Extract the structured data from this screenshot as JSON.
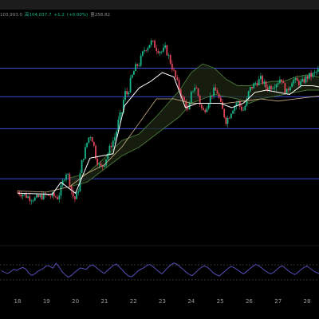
{
  "header": {
    "quote": [
      {
        "text": "103,993.0",
        "color": "#8a8a8a"
      },
      {
        "text": "高104,037.7",
        "color": "#19b58a"
      },
      {
        "text": "+1.2",
        "color": "#19b58a"
      },
      {
        "text": "(+0.00%)",
        "color": "#19b58a"
      },
      {
        "text": "量258.82",
        "color": "#8a8a8a"
      }
    ]
  },
  "colors": {
    "up": "#19b58a",
    "down": "#e0455a",
    "level_line": "#3a4bd9",
    "rsi_line": "#5a56c8",
    "cloud_line": "#4a7a3a",
    "tenkan": "#ffffff",
    "kijun": "#d2b48c"
  },
  "chart_data": [
    {
      "type": "candlestick",
      "title": "",
      "xlabel": "",
      "ylabel": "",
      "categories": [
        "18",
        "19",
        "20",
        "21",
        "22",
        "23",
        "24",
        "25",
        "26",
        "27",
        "28"
      ],
      "ylim": [
        0,
        100
      ],
      "grid": false,
      "horizontal_levels": [
        78.0,
        65.0,
        50.4,
        27.6
      ],
      "price_path": [
        [
          0,
          21.5
        ],
        [
          0.2,
          20.5
        ],
        [
          0.4,
          19.0
        ],
        [
          0.6,
          18.5
        ],
        [
          0.8,
          19.5
        ],
        [
          1.0,
          20.0
        ],
        [
          1.2,
          19.8
        ],
        [
          1.4,
          19.0
        ],
        [
          1.5,
          23.0
        ],
        [
          1.6,
          28.0
        ],
        [
          1.7,
          31.0
        ],
        [
          1.8,
          26.0
        ],
        [
          1.9,
          20.0
        ],
        [
          2.0,
          18.0
        ],
        [
          2.1,
          23.0
        ],
        [
          2.2,
          34.0
        ],
        [
          2.3,
          39.0
        ],
        [
          2.4,
          44.0
        ],
        [
          2.5,
          48.0
        ],
        [
          2.6,
          45.0
        ],
        [
          2.7,
          38.0
        ],
        [
          2.8,
          34.0
        ],
        [
          2.9,
          32.5
        ],
        [
          3.0,
          35.0
        ],
        [
          3.2,
          42.0
        ],
        [
          3.4,
          48.0
        ],
        [
          3.5,
          55.0
        ],
        [
          3.6,
          58.0
        ],
        [
          3.7,
          67.0
        ],
        [
          3.8,
          66.0
        ],
        [
          3.9,
          72.0
        ],
        [
          4.0,
          76.0
        ],
        [
          4.1,
          79.0
        ],
        [
          4.2,
          80.0
        ],
        [
          4.3,
          84.0
        ],
        [
          4.4,
          87.0
        ],
        [
          4.5,
          88.0
        ],
        [
          4.6,
          90.0
        ],
        [
          4.7,
          89.0
        ],
        [
          4.8,
          87.0
        ],
        [
          4.9,
          86.0
        ],
        [
          5.0,
          85.5
        ],
        [
          5.1,
          87.0
        ],
        [
          5.2,
          84.0
        ],
        [
          5.3,
          80.0
        ],
        [
          5.4,
          76.0
        ],
        [
          5.5,
          72.0
        ],
        [
          5.6,
          68.0
        ],
        [
          5.7,
          64.0
        ],
        [
          5.8,
          62.0
        ],
        [
          5.9,
          57.5
        ],
        [
          6.0,
          66.0
        ],
        [
          6.1,
          70.0
        ],
        [
          6.2,
          68.0
        ],
        [
          6.3,
          62.0
        ],
        [
          6.4,
          58.0
        ],
        [
          6.5,
          60.0
        ],
        [
          6.6,
          63.0
        ],
        [
          6.7,
          66.0
        ],
        [
          6.8,
          68.0
        ],
        [
          6.9,
          67.0
        ],
        [
          7.0,
          62.0
        ],
        [
          7.1,
          58.0
        ],
        [
          7.2,
          54.0
        ],
        [
          7.3,
          56.0
        ],
        [
          7.4,
          59.0
        ],
        [
          7.5,
          61.0
        ],
        [
          7.6,
          63.0
        ],
        [
          7.7,
          60.0
        ],
        [
          7.8,
          59.0
        ],
        [
          7.9,
          62.0
        ],
        [
          8.0,
          68.0
        ],
        [
          8.2,
          71.0
        ],
        [
          8.4,
          73.0
        ],
        [
          8.6,
          69.0
        ],
        [
          8.8,
          70.0
        ],
        [
          9.0,
          72.0
        ],
        [
          9.1,
          74.0
        ],
        [
          9.2,
          69.0
        ],
        [
          9.3,
          67.0
        ],
        [
          9.4,
          70.0
        ],
        [
          9.5,
          73.0
        ],
        [
          9.6,
          72.0
        ],
        [
          9.8,
          71.0
        ],
        [
          10.0,
          74.0
        ],
        [
          10.2,
          75.0
        ],
        [
          10.4,
          77.0
        ],
        [
          10.5,
          73.0
        ],
        [
          10.6,
          71.0
        ],
        [
          10.7,
          70.0
        ],
        [
          10.8,
          72.5
        ]
      ],
      "tenkan_path": [
        [
          0,
          21.0
        ],
        [
          1.2,
          20.5
        ],
        [
          1.5,
          26.0
        ],
        [
          2.0,
          21.0
        ],
        [
          2.5,
          37.0
        ],
        [
          2.9,
          38.0
        ],
        [
          3.3,
          39.0
        ],
        [
          3.7,
          61.0
        ],
        [
          4.2,
          69.0
        ],
        [
          4.6,
          72.0
        ],
        [
          5.0,
          76.0
        ],
        [
          5.4,
          74.0
        ],
        [
          5.8,
          60.0
        ],
        [
          6.2,
          62.0
        ],
        [
          6.6,
          62.0
        ],
        [
          7.0,
          62.0
        ],
        [
          7.4,
          60.0
        ],
        [
          7.8,
          62.0
        ],
        [
          8.2,
          67.0
        ],
        [
          8.6,
          68.0
        ],
        [
          9.0,
          67.0
        ],
        [
          9.4,
          66.0
        ],
        [
          9.8,
          70.0
        ],
        [
          10.2,
          70.0
        ],
        [
          10.6,
          69.0
        ],
        [
          10.8,
          67.0
        ]
      ],
      "kijun_path": [
        [
          0,
          22.0
        ],
        [
          1.0,
          21.5
        ],
        [
          1.8,
          24.0
        ],
        [
          2.4,
          30.0
        ],
        [
          3.0,
          34.0
        ],
        [
          3.6,
          42.0
        ],
        [
          4.2,
          53.0
        ],
        [
          4.8,
          64.0
        ],
        [
          5.4,
          64.0
        ],
        [
          6.0,
          62.0
        ],
        [
          6.6,
          62.0
        ],
        [
          7.2,
          62.0
        ],
        [
          7.8,
          63.0
        ],
        [
          8.4,
          64.0
        ],
        [
          9.0,
          63.0
        ],
        [
          9.6,
          64.0
        ],
        [
          10.2,
          65.0
        ],
        [
          10.8,
          66.0
        ]
      ],
      "cloud_upper": [
        [
          1.8,
          28.0
        ],
        [
          2.4,
          30.0
        ],
        [
          3.0,
          37.0
        ],
        [
          3.6,
          45.0
        ],
        [
          4.2,
          48.0
        ],
        [
          4.8,
          56.0
        ],
        [
          5.2,
          62.0
        ],
        [
          5.6,
          68.0
        ],
        [
          6.0,
          76.0
        ],
        [
          6.4,
          80.0
        ],
        [
          6.8,
          78.0
        ],
        [
          7.2,
          73.0
        ],
        [
          7.6,
          70.0
        ],
        [
          8.0,
          70.0
        ],
        [
          8.4,
          71.0
        ],
        [
          8.8,
          72.0
        ],
        [
          9.2,
          72.0
        ],
        [
          9.6,
          74.0
        ],
        [
          10.0,
          75.0
        ],
        [
          10.4,
          74.0
        ],
        [
          10.8,
          74.0
        ]
      ],
      "cloud_lower": [
        [
          1.8,
          24.0
        ],
        [
          2.4,
          26.0
        ],
        [
          3.0,
          32.0
        ],
        [
          3.6,
          38.0
        ],
        [
          4.2,
          42.0
        ],
        [
          4.8,
          48.0
        ],
        [
          5.2,
          52.0
        ],
        [
          5.6,
          56.0
        ],
        [
          6.0,
          62.0
        ],
        [
          6.4,
          64.0
        ],
        [
          6.8,
          66.0
        ],
        [
          7.2,
          65.0
        ],
        [
          7.6,
          64.0
        ],
        [
          8.0,
          62.0
        ],
        [
          8.4,
          64.0
        ],
        [
          8.8,
          65.0
        ],
        [
          9.2,
          66.0
        ],
        [
          9.6,
          67.0
        ],
        [
          10.0,
          68.0
        ],
        [
          10.4,
          68.0
        ],
        [
          10.8,
          68.0
        ]
      ]
    },
    {
      "type": "line",
      "title": "",
      "xlabel": "",
      "ylabel": "",
      "series": [
        {
          "values": [
            54,
            50,
            47,
            52,
            58,
            55,
            60,
            63,
            59,
            48,
            42,
            46,
            53,
            57,
            62,
            68,
            66,
            61,
            74,
            65,
            52,
            44,
            37,
            41,
            49,
            55,
            62,
            60,
            58,
            66,
            70,
            65,
            58,
            52,
            47,
            55,
            62,
            69,
            72,
            64,
            56,
            47,
            40,
            38,
            45,
            53,
            58,
            62,
            68,
            71,
            66,
            59,
            52,
            46,
            54,
            63,
            70,
            75,
            72,
            65,
            58,
            51,
            45,
            41,
            48,
            56,
            63,
            67,
            64,
            57,
            49,
            44,
            40,
            47,
            54,
            61,
            66,
            62,
            57,
            51,
            46,
            52,
            59,
            65,
            71,
            68,
            62,
            55,
            50,
            46,
            50,
            57,
            64,
            67,
            60,
            53,
            48,
            44,
            50,
            57,
            63,
            67,
            61,
            55,
            50,
            47
          ]
        }
      ],
      "ylim": [
        0,
        100
      ],
      "horizontal_levels": [
        70,
        30
      ],
      "grid": false
    }
  ]
}
